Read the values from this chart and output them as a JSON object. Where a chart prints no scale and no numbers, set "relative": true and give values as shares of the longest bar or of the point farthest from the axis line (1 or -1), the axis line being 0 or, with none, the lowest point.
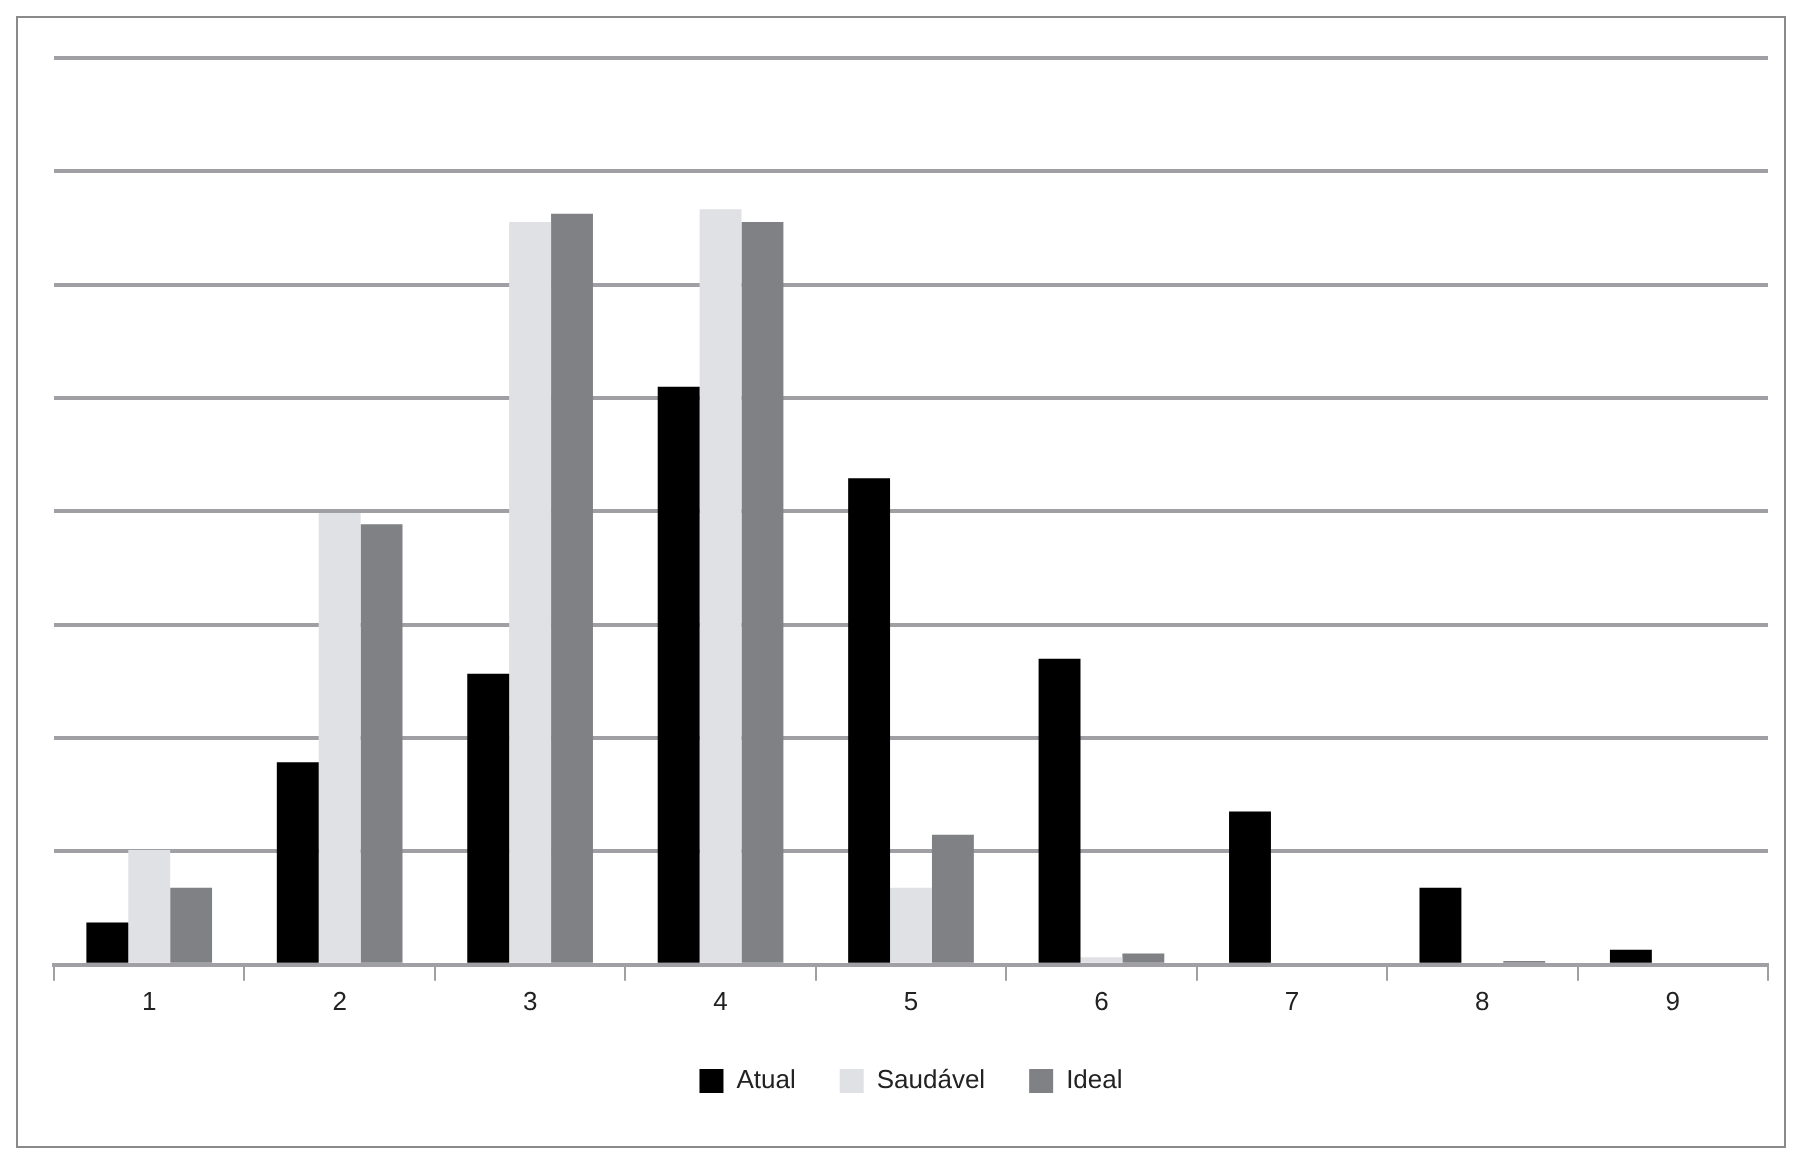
{
  "chart_data": {
    "type": "bar",
    "relative": true,
    "categories": [
      "1",
      "2",
      "3",
      "4",
      "5",
      "6",
      "7",
      "8",
      "9"
    ],
    "series": [
      {
        "name": "Atual",
        "color": "#000000",
        "values": [
          0.056,
          0.268,
          0.385,
          0.765,
          0.644,
          0.405,
          0.203,
          0.102,
          0.02
        ]
      },
      {
        "name": "Saudável",
        "color": "#e0e1e5",
        "values": [
          0.152,
          0.598,
          0.983,
          1,
          0.102,
          0.01,
          null,
          null,
          0
        ]
      },
      {
        "name": "Ideal",
        "color": "#7f8185",
        "values": [
          0.102,
          0.583,
          0.994,
          0.983,
          0.172,
          0.015,
          0,
          0.005,
          0
        ]
      }
    ],
    "grid": "y",
    "legend": "bottom"
  }
}
